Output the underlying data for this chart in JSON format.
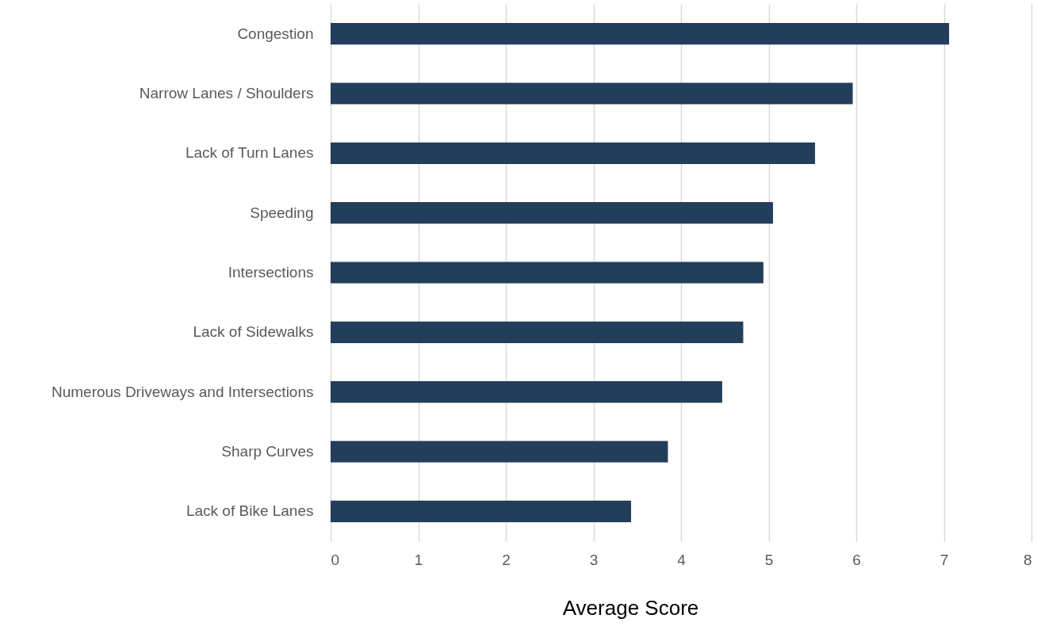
{
  "chart_data": {
    "type": "bar",
    "orientation": "horizontal",
    "xlabel": "Average Score",
    "categories": [
      "Congestion",
      "Narrow Lanes / Shoulders",
      "Lack of Turn Lanes",
      "Speeding",
      "Intersections",
      "Lack of Sidewalks",
      "Numerous Driveways and Intersections",
      "Sharp Curves",
      "Lack of Bike Lanes"
    ],
    "values": [
      7.06,
      5.96,
      5.53,
      5.05,
      4.94,
      4.71,
      4.47,
      3.85,
      3.43
    ],
    "color": "#233e5a",
    "xlim": [
      0,
      8
    ],
    "xticks": [
      0,
      1,
      2,
      3,
      4,
      5,
      6,
      7,
      8
    ],
    "grid": "x"
  }
}
